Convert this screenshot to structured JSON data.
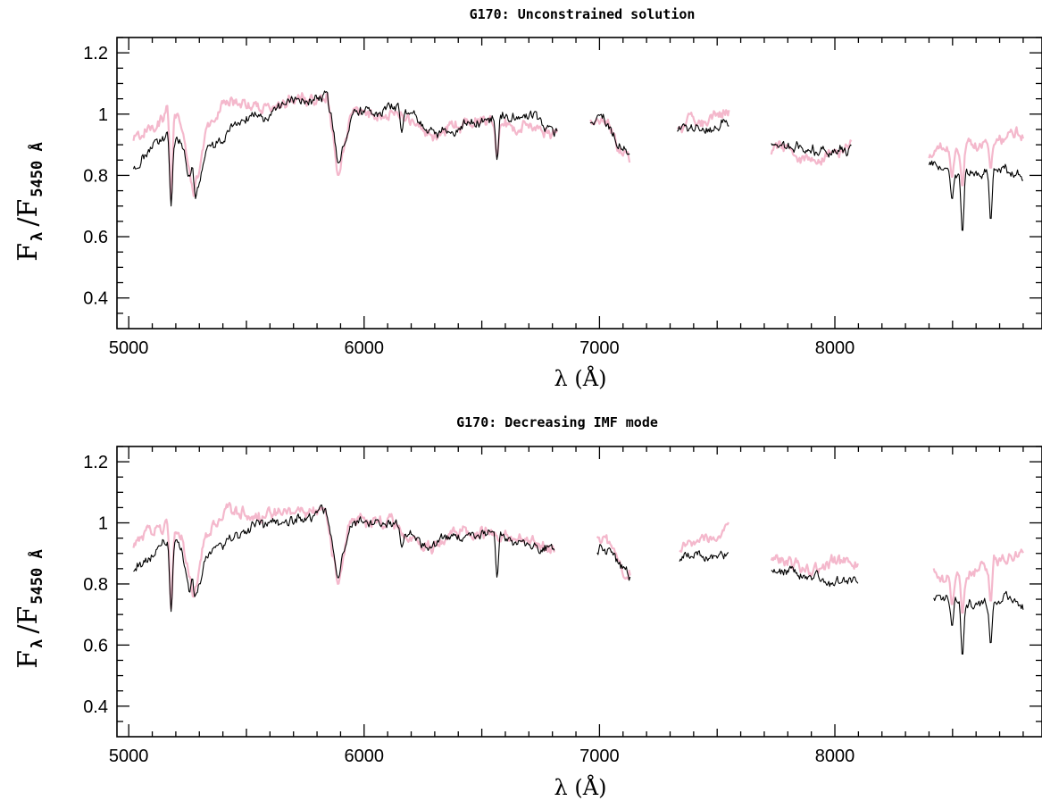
{
  "chart_data": [
    {
      "type": "line",
      "title": "G170: Unconstrained solution",
      "xlabel": "λ (Å)",
      "ylabel": "F_λ / F_5450 Å",
      "ylabel_main": "F",
      "ylabel_lambda": "λ",
      "ylabel_slash": "/F",
      "ylabel_sub": "5450 Å",
      "xlim": [
        4950,
        8880
      ],
      "ylim": [
        0.3,
        1.25
      ],
      "xticks": [
        5000,
        6000,
        7000,
        8000
      ],
      "yticks": [
        0.4,
        0.6,
        0.8,
        1.0,
        1.2
      ],
      "yticklabels": [
        "0.4",
        "0.6",
        "0.8",
        "1",
        "1.2"
      ],
      "colors": {
        "observed": "#f4b8cc",
        "model": "#000000"
      },
      "segments": [
        {
          "x0": 5020,
          "x1": 6820,
          "model_y": [
            0.82,
            0.86,
            0.9,
            0.94,
            0.9,
            0.7,
            0.88,
            0.92,
            0.97,
            0.98,
            1.0,
            0.99,
            1.02,
            1.03,
            1.04,
            1.05,
            1.06,
            0.84,
            1.0,
            1.01,
            1.0,
            1.01,
            1.02,
            0.99,
            0.95,
            0.93,
            0.95,
            0.96,
            0.97,
            0.98,
            0.99,
            1.0,
            1.0,
            0.99,
            0.96,
            0.95
          ],
          "model_dips": [
            [
              5180,
              0.7
            ],
            [
              5270,
              0.83
            ],
            [
              5890,
              0.84
            ],
            [
              6160,
              0.94
            ],
            [
              6565,
              0.85
            ]
          ],
          "obs_y": [
            0.92,
            0.95,
            0.98,
            1.02,
            0.96,
            0.73,
            0.95,
            1.0,
            1.05,
            1.04,
            1.03,
            1.02,
            1.03,
            1.04,
            1.05,
            1.04,
            1.06,
            0.82,
            1.0,
            1.01,
            1.0,
            1.01,
            1.0,
            0.97,
            0.94,
            0.93,
            0.95,
            0.96,
            0.97,
            0.98,
            0.98,
            0.97,
            0.96,
            0.95,
            0.94,
            0.95
          ],
          "obs_dips": [
            [
              5180,
              0.72
            ],
            [
              5890,
              0.8
            ],
            [
              6565,
              0.86
            ]
          ]
        },
        {
          "x0": 6960,
          "x1": 7130,
          "model_y": [
            0.97,
            0.98,
            0.99,
            0.96,
            0.92,
            0.88,
            0.86
          ],
          "model_dips": [],
          "obs_y": [
            0.98,
            0.97,
            0.98,
            0.95,
            0.9,
            0.86,
            0.84
          ],
          "obs_dips": []
        },
        {
          "x0": 7330,
          "x1": 7550,
          "model_y": [
            0.94,
            0.95,
            0.95,
            0.96,
            0.96,
            0.97,
            0.97
          ],
          "model_dips": [],
          "obs_y": [
            0.96,
            0.97,
            0.99,
            0.98,
            0.99,
            1.0,
            1.01
          ],
          "obs_dips": []
        },
        {
          "x0": 7730,
          "x1": 8070,
          "model_y": [
            0.9,
            0.91,
            0.9,
            0.89,
            0.88,
            0.89,
            0.88,
            0.88
          ],
          "model_dips": [],
          "obs_y": [
            0.88,
            0.9,
            0.87,
            0.86,
            0.85,
            0.88,
            0.89,
            0.9
          ],
          "obs_dips": []
        },
        {
          "x0": 8400,
          "x1": 8800,
          "model_y": [
            0.84,
            0.82,
            0.81,
            0.8,
            0.81,
            0.81,
            0.82,
            0.82,
            0.81,
            0.8
          ],
          "model_dips": [
            [
              8498,
              0.72
            ],
            [
              8542,
              0.61
            ],
            [
              8662,
              0.65
            ]
          ],
          "obs_y": [
            0.86,
            0.88,
            0.9,
            0.88,
            0.89,
            0.91,
            0.92,
            0.93,
            0.94,
            0.92
          ],
          "obs_dips": [
            [
              8498,
              0.79
            ],
            [
              8542,
              0.76
            ],
            [
              8662,
              0.82
            ]
          ]
        }
      ]
    },
    {
      "type": "line",
      "title": "G170: Decreasing IMF mode",
      "xlabel": "λ (Å)",
      "ylabel": "F_λ / F_5450 Å",
      "ylabel_main": "F",
      "ylabel_lambda": "λ",
      "ylabel_slash": "/F",
      "ylabel_sub": "5450 Å",
      "xlim": [
        4950,
        8880
      ],
      "ylim": [
        0.3,
        1.25
      ],
      "xticks": [
        5000,
        6000,
        7000,
        8000
      ],
      "yticks": [
        0.4,
        0.6,
        0.8,
        1.0,
        1.2
      ],
      "yticklabels": [
        "0.4",
        "0.6",
        "0.8",
        "1",
        "1.2"
      ],
      "colors": {
        "observed": "#f4b8cc",
        "model": "#000000"
      },
      "segments": [
        {
          "x0": 5020,
          "x1": 6810,
          "model_y": [
            0.84,
            0.88,
            0.91,
            0.94,
            0.9,
            0.71,
            0.88,
            0.91,
            0.96,
            0.97,
            0.99,
            0.99,
            1.0,
            1.01,
            1.02,
            1.03,
            1.04,
            0.84,
            0.99,
            1.0,
            0.99,
            1.0,
            0.99,
            0.96,
            0.93,
            0.92,
            0.94,
            0.95,
            0.96,
            0.96,
            0.96,
            0.95,
            0.94,
            0.93,
            0.92,
            0.91
          ],
          "model_dips": [
            [
              5180,
              0.71
            ],
            [
              5270,
              0.82
            ],
            [
              5890,
              0.82
            ],
            [
              6160,
              0.92
            ],
            [
              6565,
              0.82
            ]
          ],
          "obs_y": [
            0.93,
            0.95,
            0.98,
            1.02,
            0.96,
            0.73,
            0.95,
            1.0,
            1.05,
            1.04,
            1.03,
            1.02,
            1.03,
            1.04,
            1.04,
            1.03,
            1.05,
            0.8,
            1.0,
            1.01,
            1.0,
            1.0,
            0.99,
            0.96,
            0.94,
            0.93,
            0.95,
            0.96,
            0.97,
            0.97,
            0.97,
            0.96,
            0.95,
            0.94,
            0.93,
            0.92
          ],
          "obs_dips": [
            [
              5180,
              0.72
            ],
            [
              5890,
              0.8
            ]
          ]
        },
        {
          "x0": 6990,
          "x1": 7130,
          "model_y": [
            0.9,
            0.92,
            0.9,
            0.87,
            0.85,
            0.83
          ],
          "model_dips": [],
          "obs_y": [
            0.96,
            0.95,
            0.92,
            0.88,
            0.86,
            0.84
          ],
          "obs_dips": []
        },
        {
          "x0": 7340,
          "x1": 7550,
          "model_y": [
            0.87,
            0.88,
            0.89,
            0.88,
            0.89,
            0.9
          ],
          "model_dips": [],
          "obs_y": [
            0.92,
            0.93,
            0.95,
            0.96,
            0.97,
            0.98
          ],
          "obs_dips": []
        },
        {
          "x0": 7730,
          "x1": 8100,
          "model_y": [
            0.84,
            0.83,
            0.83,
            0.82,
            0.81,
            0.8,
            0.81,
            0.8
          ],
          "model_dips": [],
          "obs_y": [
            0.88,
            0.87,
            0.86,
            0.85,
            0.86,
            0.87,
            0.88,
            0.87
          ],
          "obs_dips": []
        },
        {
          "x0": 8420,
          "x1": 8800,
          "model_y": [
            0.76,
            0.75,
            0.74,
            0.74,
            0.73,
            0.74,
            0.75,
            0.75,
            0.74,
            0.72
          ],
          "model_dips": [
            [
              8498,
              0.66
            ],
            [
              8542,
              0.56
            ],
            [
              8662,
              0.6
            ]
          ],
          "obs_y": [
            0.86,
            0.8,
            0.82,
            0.83,
            0.85,
            0.86,
            0.87,
            0.88,
            0.89,
            0.9
          ],
          "obs_dips": [
            [
              8498,
              0.73
            ],
            [
              8542,
              0.7
            ],
            [
              8662,
              0.74
            ]
          ]
        }
      ]
    }
  ]
}
